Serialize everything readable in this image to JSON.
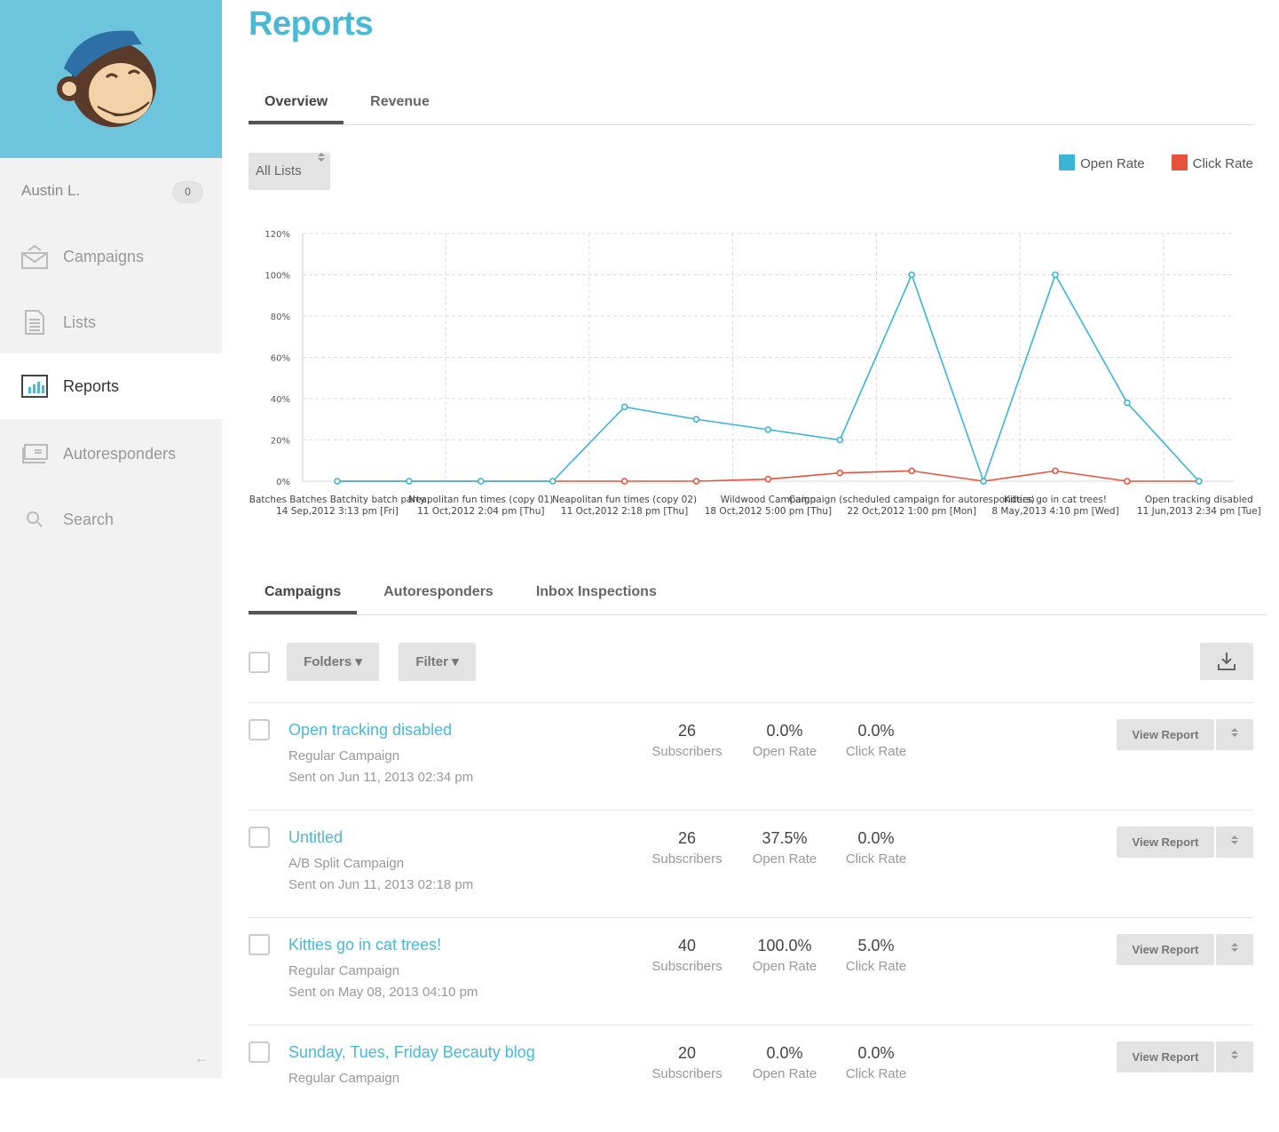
{
  "sidebar": {
    "user": "Austin L.",
    "badge": "0",
    "items": [
      {
        "label": "Campaigns"
      },
      {
        "label": "Lists"
      },
      {
        "label": "Reports"
      },
      {
        "label": "Autoresponders"
      },
      {
        "label": "Search"
      }
    ],
    "collapse": "←"
  },
  "page": {
    "title": "Reports",
    "tabs": [
      "Overview",
      "Revenue"
    ],
    "list_select": "All Lists"
  },
  "legend": [
    {
      "label": "Open Rate",
      "color": "#3ab5d6"
    },
    {
      "label": "Click Rate",
      "color": "#e5533d"
    }
  ],
  "chart_data": {
    "type": "line",
    "ylim": [
      0,
      120
    ],
    "yticks": [
      "0%",
      "20%",
      "40%",
      "60%",
      "80%",
      "100%",
      "120%"
    ],
    "x_labels": [
      {
        "name": "Batches Batches Batchity batch party",
        "date": "14 Sep,2012 3:13 pm [Fri]"
      },
      {
        "name": "Neapolitan fun times (copy 01)",
        "date": "11 Oct,2012 2:04 pm [Thu]"
      },
      {
        "name": "Neapolitan fun times (copy 02)",
        "date": "11 Oct,2012 2:18 pm [Thu]"
      },
      {
        "name": "Wildwood Campaign",
        "date": "18 Oct,2012 5:00 pm [Thu]"
      },
      {
        "name": "Campaign (scheduled campaign for autoresponders)",
        "date": "22 Oct,2012 1:00 pm [Mon]"
      },
      {
        "name": "Kitties go in cat trees!",
        "date": "8 May,2013 4:10 pm [Wed]"
      },
      {
        "name": "Open tracking disabled",
        "date": "11 Jun,2013 2:34 pm [Tue]"
      }
    ],
    "series": [
      {
        "name": "Open Rate",
        "color": "#3ab5d6",
        "values": [
          0,
          0,
          0,
          0,
          36,
          30,
          25,
          20,
          100,
          0,
          100,
          38,
          0
        ]
      },
      {
        "name": "Click Rate",
        "color": "#e5533d",
        "values": [
          0,
          0,
          0,
          0,
          0,
          0,
          1,
          4,
          5,
          0,
          5,
          0,
          0
        ]
      }
    ]
  },
  "list": {
    "tabs": [
      "Campaigns",
      "Autoresponders",
      "Inbox Inspections"
    ],
    "folders": "Folders ▾",
    "filter": "Filter ▾",
    "view_report": "View Report",
    "rows": [
      {
        "title": "Open tracking disabled",
        "type": "Regular Campaign",
        "sent": "Sent on Jun 11, 2013 02:34 pm",
        "subs": "26",
        "subs_l": "Subscribers",
        "open": "0.0%",
        "open_l": "Open Rate",
        "click": "0.0%",
        "click_l": "Click Rate"
      },
      {
        "title": "Untitled",
        "type": "A/B Split Campaign",
        "sent": "Sent on Jun 11, 2013 02:18 pm",
        "subs": "26",
        "subs_l": "Subscribers",
        "open": "37.5%",
        "open_l": "Open Rate",
        "click": "0.0%",
        "click_l": "Click Rate"
      },
      {
        "title": "Kitties go in cat trees!",
        "type": "Regular Campaign",
        "sent": "Sent on May 08, 2013 04:10 pm",
        "subs": "40",
        "subs_l": "Subscribers",
        "open": "100.0%",
        "open_l": "Open Rate",
        "click": "5.0%",
        "click_l": "Click Rate"
      },
      {
        "title": "Sunday, Tues, Friday Becauty blog",
        "type": "Regular Campaign",
        "sent": "",
        "subs": "20",
        "subs_l": "Subscribers",
        "open": "0.0%",
        "open_l": "Open Rate",
        "click": "0.0%",
        "click_l": "Click Rate"
      }
    ]
  }
}
